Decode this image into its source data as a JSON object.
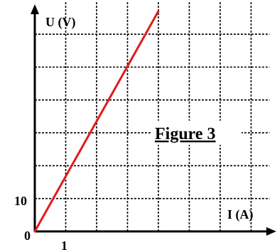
{
  "chart_data": {
    "type": "line",
    "title": "Figure 3",
    "xlabel": "I (A)",
    "ylabel": "U (V)",
    "origin_label": "0",
    "x_tick_label": "1",
    "y_tick_label": "10",
    "xlim": [
      0,
      7.6
    ],
    "ylim": [
      0,
      70
    ],
    "grid": true,
    "series": [
      {
        "x": [
          0,
          4
        ],
        "y": [
          0,
          67
        ],
        "color": "#e01b1b"
      }
    ]
  }
}
